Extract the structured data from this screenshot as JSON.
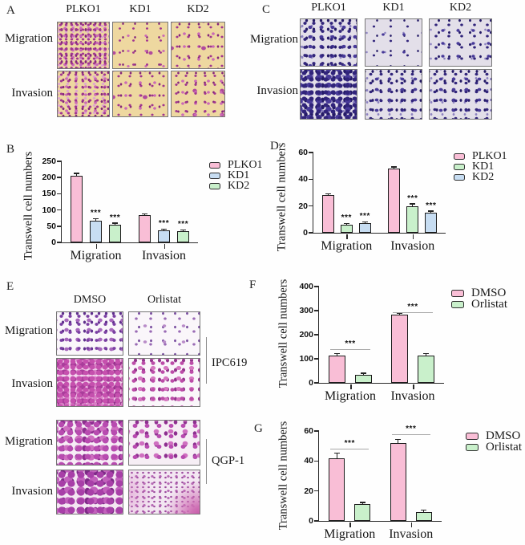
{
  "panel_a": {
    "label": "A",
    "columns": [
      "PLKO1",
      "KD1",
      "KD2"
    ],
    "rows": [
      "Migration",
      "Invasion"
    ]
  },
  "panel_c": {
    "label": "C",
    "columns": [
      "PLKO1",
      "KD1",
      "KD2"
    ],
    "rows": [
      "Migration",
      "Invasion"
    ]
  },
  "panel_e": {
    "label": "E",
    "columns": [
      "DMSO",
      "Orlistat"
    ],
    "ipc619": {
      "name": "IPC619",
      "rows": [
        "Migration",
        "Invasion"
      ]
    },
    "qgp1": {
      "name": "QGP-1",
      "rows": [
        "Migration",
        "Invasion"
      ]
    }
  },
  "colors": {
    "pink": "#f9bed6",
    "blue": "#c7ddf2",
    "green": "#c9f0cb",
    "axis": "#2a2a2a"
  },
  "chart_data": [
    {
      "panel": "B",
      "type": "bar",
      "ylabel": "Transwell cell numbers",
      "ylim": [
        0,
        250
      ],
      "yticks": [
        0,
        50,
        100,
        150,
        200,
        250
      ],
      "categories": [
        "Migration",
        "Invasion"
      ],
      "legend_position": "right",
      "series": [
        {
          "name": "PLKO1",
          "color": "#f9bed6",
          "values": [
            205,
            85
          ],
          "errors": [
            6,
            2
          ],
          "sig": [
            "",
            ""
          ]
        },
        {
          "name": "KD1",
          "color": "#c7ddf2",
          "values": [
            67,
            37
          ],
          "errors": [
            4,
            3
          ],
          "sig": [
            "***",
            "***"
          ]
        },
        {
          "name": "KD2",
          "color": "#c9f0cb",
          "values": [
            55,
            34
          ],
          "errors": [
            3,
            2
          ],
          "sig": [
            "***",
            "***"
          ]
        }
      ]
    },
    {
      "panel": "D",
      "type": "bar",
      "ylabel": "Transwell cell numbers",
      "ylim": [
        0,
        60
      ],
      "yticks": [
        0,
        20,
        40,
        60
      ],
      "categories": [
        "Migration",
        "Invasion"
      ],
      "legend_position": "right",
      "series": [
        {
          "name": "PLKO1",
          "color": "#f9bed6",
          "values": [
            28,
            48
          ],
          "errors": [
            0.8,
            0.8
          ],
          "sig": [
            "",
            ""
          ]
        },
        {
          "name": "KD1",
          "color": "#c9f0cb",
          "values": [
            6,
            20
          ],
          "errors": [
            0.6,
            1.2
          ],
          "sig": [
            "***",
            "***"
          ]
        },
        {
          "name": "KD2",
          "color": "#c7ddf2",
          "values": [
            7,
            15
          ],
          "errors": [
            0.6,
            0.9
          ],
          "sig": [
            "***",
            "***"
          ]
        }
      ]
    },
    {
      "panel": "F",
      "type": "bar",
      "ylabel": "Transwell cell numbers",
      "ylim": [
        0,
        400
      ],
      "yticks": [
        0,
        100,
        200,
        300,
        400
      ],
      "categories": [
        "Migration",
        "Invasion"
      ],
      "legend_position": "right",
      "series": [
        {
          "name": "DMSO",
          "color": "#f9bed6",
          "values": [
            115,
            282
          ],
          "errors": [
            5,
            4
          ]
        },
        {
          "name": "Orlistat",
          "color": "#c9f0cb",
          "values": [
            35,
            115
          ],
          "errors": [
            3,
            4
          ]
        }
      ],
      "pair_sig": [
        {
          "label": "***",
          "y": 140
        },
        {
          "label": "***",
          "y": 295
        }
      ]
    },
    {
      "panel": "G",
      "type": "bar",
      "ylabel": "Transwell cell numbers",
      "ylim": [
        0,
        60
      ],
      "yticks": [
        0,
        20,
        40,
        60
      ],
      "categories": [
        "Migration",
        "Invasion"
      ],
      "legend_position": "right",
      "series": [
        {
          "name": "DMSO",
          "color": "#f9bed6",
          "values": [
            42,
            52
          ],
          "errors": [
            3,
            2
          ]
        },
        {
          "name": "Orlistat",
          "color": "#c9f0cb",
          "values": [
            11,
            6
          ],
          "errors": [
            1,
            0.8
          ]
        }
      ],
      "pair_sig": [
        {
          "label": "***",
          "y": 48
        },
        {
          "label": "***",
          "y": 58
        }
      ]
    }
  ]
}
